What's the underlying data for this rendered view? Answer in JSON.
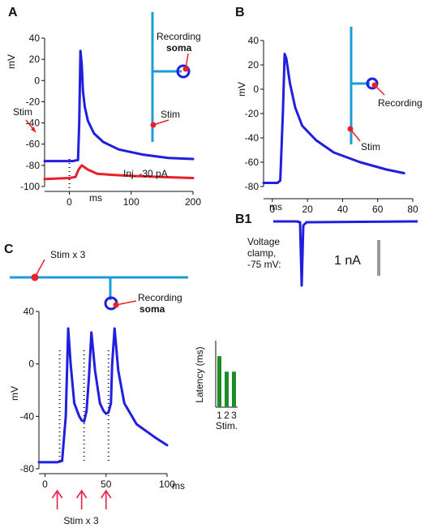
{
  "colors": {
    "trace": "#1f1fdd",
    "red": "#e8202a",
    "neuron": "#1e9cd7",
    "bar": "#1e8c2a",
    "scale": "#999999",
    "arrow": "#e8204a"
  },
  "panels": {
    "a": "A",
    "b": "B",
    "b1": "B1",
    "c": "C"
  },
  "panel_a": {
    "ylabel": "mV",
    "xlabel": "ms",
    "recording_label": "Recording",
    "recording_sub": "soma",
    "stim_cell_label": "Stim",
    "stim_label": "Stim",
    "injection_label": "Inj. -30 pA"
  },
  "panel_b": {
    "ylabel": "mV",
    "xlabel": "ms",
    "recording_label": "Recording",
    "stim_label": "Stim"
  },
  "panel_b1": {
    "vc_line1": "Voltage",
    "vc_line2": "clamp,",
    "vc_line3": "-75 mV:",
    "scale_label": "1 nA"
  },
  "panel_c": {
    "stim_top_label": "Stim x 3",
    "recording_label": "Recording",
    "recording_sub": "soma",
    "ylabel": "mV",
    "xlabel": "ms",
    "stim_bottom_label": "Stim x 3"
  },
  "chart_data": [
    {
      "id": "A",
      "type": "line",
      "ylabel": "mV",
      "xlabel": "ms",
      "xticks": [
        0,
        100,
        200
      ],
      "yticks": [
        40,
        20,
        0,
        -20,
        -40,
        -60,
        -80,
        -100
      ],
      "xlim": [
        -40,
        200
      ],
      "ylim": [
        -100,
        40
      ],
      "series": [
        {
          "x": [
            -40,
            5,
            14,
            16,
            18,
            20,
            22,
            25,
            30,
            40,
            55,
            80,
            120,
            160,
            200
          ],
          "y": [
            -76,
            -76,
            -75,
            -40,
            28,
            15,
            -10,
            -25,
            -38,
            -50,
            -58,
            -65,
            -70,
            -73,
            -74
          ]
        },
        {
          "x": [
            -40,
            0,
            10,
            15,
            20,
            30,
            45,
            70,
            100,
            150,
            200
          ],
          "y": [
            -93,
            -92,
            -91,
            -84,
            -80,
            -84,
            -88,
            -89,
            -90,
            -91,
            -92
          ]
        }
      ],
      "stim_time": 0
    },
    {
      "id": "B",
      "type": "line",
      "ylabel": "mV",
      "xlabel": "ms",
      "xticks": [
        0,
        20,
        40,
        60,
        80
      ],
      "yticks": [
        40,
        20,
        0,
        -20,
        -40,
        -60,
        -80
      ],
      "xlim": [
        -5,
        80
      ],
      "ylim": [
        -80,
        40
      ],
      "series": [
        {
          "x": [
            -5,
            3,
            4.5,
            6,
            7,
            8,
            10,
            13,
            17,
            25,
            35,
            50,
            65,
            75
          ],
          "y": [
            -77,
            -77,
            -75,
            -20,
            29,
            25,
            5,
            -15,
            -30,
            -42,
            -52,
            -60,
            -66,
            -69
          ]
        }
      ]
    },
    {
      "id": "C",
      "type": "line",
      "ylabel": "mV",
      "xlabel": "ms",
      "xticks": [
        0,
        50,
        100
      ],
      "yticks": [
        40,
        0,
        -40,
        -80
      ],
      "xlim": [
        -5,
        100
      ],
      "ylim": [
        -80,
        40
      ],
      "series": [
        {
          "x": [
            -5,
            10,
            14,
            17,
            19,
            21,
            24,
            28,
            30,
            32,
            34,
            36,
            38,
            41,
            45,
            48,
            50,
            52,
            54,
            55,
            57,
            60,
            65,
            75,
            90,
            100
          ],
          "y": [
            -75,
            -75,
            -74,
            -40,
            27,
            0,
            -30,
            -40,
            -43,
            -44,
            -36,
            -10,
            24,
            -5,
            -30,
            -36,
            -38,
            -37,
            -30,
            0,
            27,
            -5,
            -30,
            -46,
            -56,
            -62
          ]
        }
      ],
      "stim_times": [
        10,
        30,
        50
      ]
    },
    {
      "id": "C-inset",
      "type": "bar",
      "ylabel": "Latency (ms)",
      "xlabel": "Stim.",
      "categories": [
        "1",
        "2",
        "3"
      ],
      "values": [
        2.3,
        1.6,
        1.6
      ],
      "ylim": [
        0,
        3
      ]
    }
  ]
}
